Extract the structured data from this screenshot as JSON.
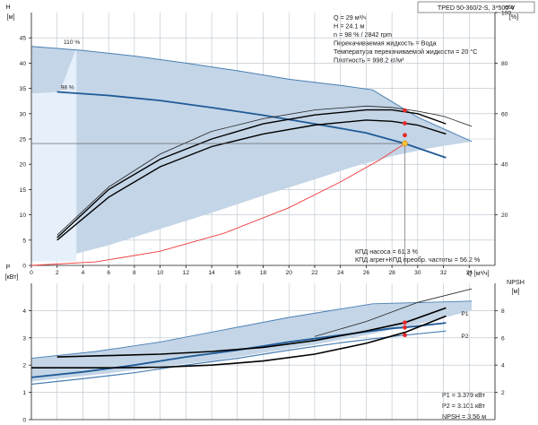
{
  "chart_data": [
    {
      "type": "line",
      "title": "TPED 50-360/2-S, 3*500 V",
      "xlabel": "Q [м³/ч]",
      "ylabel": "H [м]",
      "y2label": "eta [%]",
      "xlim": [
        0,
        36
      ],
      "ylim": [
        0,
        50
      ],
      "y2lim": [
        0,
        100
      ],
      "xticks": [
        0,
        2,
        4,
        6,
        8,
        10,
        12,
        14,
        16,
        18,
        20,
        22,
        24,
        26,
        28,
        30,
        32,
        34
      ],
      "yticks": [
        0,
        5,
        10,
        15,
        20,
        25,
        30,
        35,
        40,
        45
      ],
      "y2ticks": [
        20,
        40,
        60,
        80,
        100
      ],
      "grid": true,
      "info": [
        "Q = 29 м³/ч",
        "H = 24.1 м",
        "n = 98 % / 2842 rpm",
        "Перекачиваемая жидкость = Вода",
        "Температура перекачиваемой жидкости = 20 °C",
        "Плотность = 998.2 кг/м³"
      ],
      "eff_notes": [
        "КПД насоса = 61.3 %",
        "КПД агрег+КПД преобр. частоты = 56.2 %"
      ],
      "series": [
        {
          "name": "110 %",
          "kind": "head",
          "color": "#4a7fb3",
          "x": [
            0,
            4,
            8,
            12,
            16,
            20,
            24,
            26.5,
            30,
            34.2
          ],
          "y": [
            43.3,
            42.5,
            41.4,
            40.0,
            38.5,
            36.8,
            35.6,
            34.7,
            29.3,
            24.5
          ]
        },
        {
          "name": "98 %",
          "kind": "head",
          "color": "#1f5a96",
          "x": [
            2,
            6,
            10,
            14,
            18,
            22,
            26,
            29,
            32.2
          ],
          "y": [
            34.3,
            33.6,
            32.6,
            31.2,
            29.7,
            28.0,
            26.2,
            24.1,
            21.3
          ]
        },
        {
          "name": "",
          "kind": "system",
          "color": "#ef3b3b",
          "x": [
            0,
            5,
            10,
            15,
            20,
            24,
            27,
            29
          ],
          "y": [
            0.0,
            0.7,
            2.8,
            6.4,
            11.4,
            16.5,
            20.8,
            24.1
          ]
        },
        {
          "name": "",
          "kind": "eff-upper",
          "color": "#222222",
          "x": [
            2,
            6,
            10,
            14,
            18,
            22,
            26,
            28,
            30,
            32,
            34.2
          ],
          "y": [
            12,
            31,
            44,
            53,
            58,
            61.5,
            63,
            62.5,
            61,
            59,
            55
          ]
        },
        {
          "name": "",
          "kind": "eff-pump",
          "color": "#000000",
          "x": [
            2,
            6,
            10,
            14,
            18,
            22,
            26,
            28,
            30,
            32.2
          ],
          "y": [
            11,
            30,
            42,
            50,
            56,
            59.5,
            61.5,
            61.5,
            60,
            56
          ]
        },
        {
          "name": "",
          "kind": "eff-total",
          "color": "#000000",
          "x": [
            2,
            6,
            10,
            14,
            18,
            22,
            26,
            28,
            30,
            32.2
          ],
          "y": [
            10,
            27,
            39,
            47,
            52,
            55.5,
            57.5,
            57,
            55.5,
            52
          ]
        }
      ],
      "operating_point": {
        "x": 29,
        "y": 24.1
      },
      "eff_points": [
        {
          "x": 29,
          "y": 61.3
        },
        {
          "x": 29,
          "y": 56.2
        },
        {
          "x": 29,
          "y": 51.5
        }
      ],
      "area_outer_upper": {
        "x": [
          0,
          4,
          8,
          12,
          16,
          20,
          24,
          26.5,
          30,
          34.2
        ],
        "y": [
          43.3,
          42.5,
          41.4,
          40.0,
          38.5,
          36.8,
          35.6,
          34.7,
          29.3,
          24.5
        ]
      },
      "area_outer_lower": {
        "x": [
          34.2,
          31,
          28,
          25,
          22,
          18,
          14,
          10,
          6,
          3,
          0
        ],
        "y": [
          24.5,
          23.2,
          21.6,
          19.5,
          17.0,
          13.8,
          10.4,
          7.2,
          4.0,
          2.0,
          1.2
        ]
      },
      "area_light_upper": {
        "x": [
          0,
          2.2,
          3.5,
          3.5,
          0
        ],
        "y": [
          34.0,
          34.3,
          43.0,
          0.8,
          0.8
        ]
      }
    },
    {
      "type": "line",
      "xlabel": "",
      "ylabel": "P [кВт]",
      "y2label": "NPSH [м]",
      "xlim": [
        0,
        36
      ],
      "ylim": [
        0,
        5
      ],
      "y2lim": [
        0,
        10
      ],
      "yticks": [
        0,
        1,
        2,
        3,
        4
      ],
      "y2ticks": [
        2,
        4,
        6,
        8
      ],
      "grid": true,
      "series": [
        {
          "name": "P1",
          "kind": "p1",
          "color": "#1f5a96",
          "x": [
            0,
            4,
            8,
            12,
            16,
            20,
            24,
            28,
            29,
            32.2
          ],
          "y": [
            1.55,
            1.75,
            2.0,
            2.3,
            2.55,
            2.85,
            3.1,
            3.35,
            3.38,
            3.55
          ]
        },
        {
          "name": "P2",
          "kind": "p2",
          "color": "#4a7fb3",
          "x": [
            0,
            4,
            8,
            12,
            16,
            20,
            24,
            28,
            29,
            32.2
          ],
          "y": [
            1.3,
            1.5,
            1.72,
            2.0,
            2.25,
            2.55,
            2.82,
            3.05,
            3.1,
            3.25
          ]
        },
        {
          "name": "",
          "kind": "p-upper",
          "color": "#4a7fb3",
          "x": [
            0,
            5,
            10,
            15,
            20,
            26.5,
            34.2
          ],
          "y": [
            2.25,
            2.5,
            2.85,
            3.3,
            3.75,
            4.25,
            4.35
          ]
        },
        {
          "name": "",
          "kind": "npsh",
          "color": "#000000",
          "x": [
            2,
            6,
            10,
            14,
            18,
            22,
            26,
            29,
            32.2
          ],
          "y": [
            2.3,
            2.35,
            2.4,
            2.5,
            2.65,
            2.9,
            3.25,
            3.56,
            4.1
          ]
        },
        {
          "name": "",
          "kind": "npsh-low",
          "color": "#000000",
          "x": [
            0,
            6,
            10,
            14,
            18,
            22,
            26,
            29,
            32.2
          ],
          "y": [
            1.9,
            1.9,
            1.92,
            2.0,
            2.15,
            2.4,
            2.8,
            3.2,
            3.8
          ]
        },
        {
          "name": "",
          "kind": "npsh-max",
          "color": "#222222",
          "x": [
            22,
            26,
            30,
            34.2
          ],
          "y": [
            3.05,
            3.6,
            4.3,
            4.8
          ]
        }
      ],
      "points": [
        {
          "x": 29,
          "y": 3.379
        },
        {
          "x": 29,
          "y": 3.101
        },
        {
          "x": 29,
          "y": 3.56,
          "axis": "y2"
        }
      ],
      "area_upper": {
        "x": [
          0,
          5,
          10,
          15,
          20,
          26.5,
          34.2
        ],
        "y": [
          2.25,
          2.5,
          2.85,
          3.3,
          3.75,
          4.25,
          4.35
        ]
      },
      "area_lower": {
        "x": [
          34.2,
          30,
          26,
          22,
          18,
          14,
          10,
          6,
          2,
          0
        ],
        "y": [
          4.0,
          3.5,
          3.1,
          2.75,
          2.45,
          2.15,
          1.95,
          1.7,
          1.5,
          1.4
        ]
      },
      "readout": [
        "P1 = 3.379 кВт",
        "P2 = 3.101 кВт",
        "NPSH = 3.56 м"
      ]
    }
  ],
  "colors": {
    "area_blue": "#c4d5e7",
    "area_light": "#e6f0fb",
    "head110": "#4a7fb3",
    "head98": "#1f5a96",
    "system": "#ef3b3b",
    "opoint": "#f7c23b"
  }
}
